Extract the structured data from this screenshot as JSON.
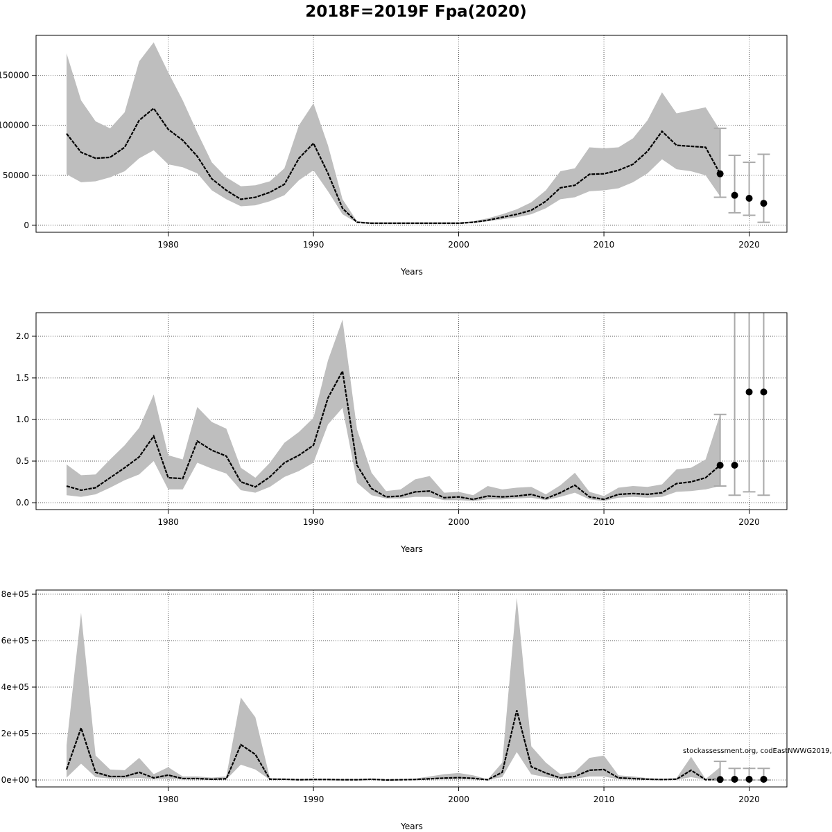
{
  "title": "2018F=2019F Fpa(2020)",
  "annotation": "stockassessment.org, codEastNWWG2019,",
  "chart_data": [
    {
      "type": "line",
      "xlabel": "Years",
      "ylim": [
        -7000,
        190000
      ],
      "xlim": [
        1970.9,
        2022.6
      ],
      "grid": true,
      "x_ticks": [
        "1980",
        "1990",
        "2000",
        "2010",
        "2020"
      ],
      "y_ticks": [
        {
          "v": 0,
          "label": "0"
        },
        {
          "v": 50000,
          "label": "50000"
        },
        {
          "v": 100000,
          "label": "100000"
        },
        {
          "v": 150000,
          "label": "150000"
        }
      ],
      "years_start": 1973,
      "estimate": [
        91700,
        73000,
        67000,
        68000,
        78000,
        105000,
        117000,
        96000,
        85000,
        69000,
        46500,
        35000,
        26000,
        28000,
        33000,
        41000,
        67000,
        82000,
        52000,
        17000,
        3000,
        2000,
        2000,
        2000,
        2000,
        2000,
        2000,
        2000,
        3000,
        5000,
        8000,
        11000,
        15000,
        24000,
        37500,
        40000,
        51000,
        51500,
        55000,
        61000,
        74000,
        94000,
        80000,
        79000,
        78000,
        51500
      ],
      "lower": [
        51000,
        43000,
        44000,
        48000,
        54000,
        67000,
        75000,
        61000,
        58000,
        52000,
        35000,
        26000,
        19000,
        20000,
        24000,
        30000,
        45000,
        55000,
        34000,
        11000,
        2500,
        1500,
        1500,
        1500,
        1500,
        1500,
        1500,
        1500,
        2500,
        4000,
        6000,
        8000,
        11000,
        17000,
        26000,
        28000,
        34000,
        35000,
        37000,
        43000,
        52000,
        66000,
        56000,
        54000,
        50000,
        29000
      ],
      "upper": [
        172000,
        125000,
        104000,
        97000,
        113000,
        164000,
        183000,
        153000,
        125000,
        93000,
        63000,
        48000,
        39000,
        40000,
        44000,
        57000,
        100000,
        122000,
        80000,
        26000,
        4000,
        3000,
        3000,
        3000,
        3000,
        3000,
        3000,
        3000,
        4000,
        7000,
        11000,
        16000,
        23000,
        35000,
        54000,
        57000,
        78000,
        77000,
        78000,
        87000,
        105000,
        133000,
        112000,
        115000,
        118000,
        95000
      ],
      "forecast": [
        {
          "year": 2018,
          "value": 51500,
          "low": 28000,
          "high": 97000
        },
        {
          "year": 2019,
          "value": 30000,
          "low": 12500,
          "high": 70000
        },
        {
          "year": 2020,
          "value": 27000,
          "low": 10000,
          "high": 63000
        },
        {
          "year": 2021,
          "value": 22000,
          "low": 3000,
          "high": 71000
        }
      ]
    },
    {
      "type": "line",
      "xlabel": "Years",
      "ylim": [
        -0.083,
        2.283
      ],
      "xlim": [
        1970.9,
        2022.6
      ],
      "grid": true,
      "x_ticks": [
        "1980",
        "1990",
        "2000",
        "2010",
        "2020"
      ],
      "y_ticks": [
        {
          "v": 0,
          "label": "0.0"
        },
        {
          "v": 0.5,
          "label": "0.5"
        },
        {
          "v": 1.0,
          "label": "1.0"
        },
        {
          "v": 1.5,
          "label": "1.5"
        },
        {
          "v": 2.0,
          "label": "2.0"
        }
      ],
      "years_start": 1973,
      "estimate": [
        0.2,
        0.15,
        0.18,
        0.3,
        0.42,
        0.55,
        0.8,
        0.3,
        0.29,
        0.74,
        0.63,
        0.56,
        0.25,
        0.19,
        0.31,
        0.48,
        0.57,
        0.69,
        1.26,
        1.58,
        0.45,
        0.17,
        0.07,
        0.08,
        0.13,
        0.14,
        0.06,
        0.07,
        0.04,
        0.08,
        0.07,
        0.08,
        0.1,
        0.05,
        0.12,
        0.21,
        0.07,
        0.04,
        0.1,
        0.11,
        0.1,
        0.12,
        0.23,
        0.25,
        0.3,
        0.45
      ],
      "lower": [
        0.09,
        0.07,
        0.1,
        0.18,
        0.27,
        0.34,
        0.5,
        0.16,
        0.16,
        0.48,
        0.41,
        0.35,
        0.15,
        0.12,
        0.19,
        0.31,
        0.38,
        0.48,
        0.94,
        1.14,
        0.24,
        0.09,
        0.05,
        0.05,
        0.07,
        0.07,
        0.03,
        0.03,
        0.02,
        0.04,
        0.04,
        0.05,
        0.06,
        0.03,
        0.07,
        0.12,
        0.04,
        0.02,
        0.06,
        0.07,
        0.06,
        0.07,
        0.13,
        0.14,
        0.16,
        0.2
      ],
      "upper": [
        0.46,
        0.33,
        0.34,
        0.52,
        0.69,
        0.9,
        1.3,
        0.57,
        0.52,
        1.15,
        0.97,
        0.89,
        0.42,
        0.3,
        0.48,
        0.72,
        0.85,
        1.02,
        1.71,
        2.2,
        0.88,
        0.36,
        0.14,
        0.16,
        0.28,
        0.32,
        0.12,
        0.13,
        0.09,
        0.2,
        0.16,
        0.18,
        0.19,
        0.1,
        0.21,
        0.36,
        0.13,
        0.08,
        0.18,
        0.2,
        0.19,
        0.22,
        0.4,
        0.42,
        0.52,
        1.06
      ],
      "forecast": [
        {
          "year": 2018,
          "value": 0.45,
          "low": 0.2,
          "high": 1.06
        },
        {
          "year": 2019,
          "value": 0.45,
          "low": 0.09,
          "high": 3.0
        },
        {
          "year": 2020,
          "value": 1.33,
          "low": 0.13,
          "high": 3.0
        },
        {
          "year": 2021,
          "value": 1.33,
          "low": 0.09,
          "high": 3.0
        }
      ]
    },
    {
      "type": "line",
      "xlabel": "Years",
      "ylim": [
        -30000,
        818000
      ],
      "xlim": [
        1970.9,
        2022.6
      ],
      "grid": true,
      "x_ticks": [
        "1980",
        "1990",
        "2000",
        "2010",
        "2020"
      ],
      "y_ticks": [
        {
          "v": 0,
          "label": "0e+00"
        },
        {
          "v": 200000,
          "label": "2e+05"
        },
        {
          "v": 400000,
          "label": "4e+05"
        },
        {
          "v": 600000,
          "label": "6e+05"
        },
        {
          "v": 800000,
          "label": "8e+05"
        }
      ],
      "years_start": 1973,
      "estimate": [
        45000,
        224000,
        33000,
        15000,
        15000,
        33000,
        9000,
        21000,
        6000,
        6000,
        3000,
        5000,
        152000,
        110000,
        3000,
        3000,
        1000,
        2000,
        2000,
        1000,
        1000,
        3000,
        0,
        1000,
        2000,
        5000,
        8000,
        10000,
        7000,
        1000,
        33000,
        300000,
        57000,
        30000,
        9000,
        15000,
        42000,
        45000,
        9000,
        6000,
        3000,
        2000,
        3000,
        42000,
        1000,
        2000
      ],
      "lower": [
        10000,
        70000,
        12000,
        6000,
        6000,
        9000,
        3000,
        6000,
        2000,
        2000,
        1000,
        2000,
        66000,
        45000,
        1000,
        1000,
        500,
        500,
        500,
        500,
        500,
        1000,
        0,
        500,
        1000,
        2000,
        3000,
        4000,
        3000,
        500,
        12000,
        120000,
        24000,
        12000,
        3000,
        5000,
        15000,
        15000,
        3000,
        2000,
        1000,
        500,
        1000,
        12000,
        500,
        500
      ],
      "upper": [
        150000,
        720000,
        105000,
        45000,
        42000,
        95000,
        25000,
        55000,
        15000,
        15000,
        10000,
        15000,
        355000,
        270000,
        8000,
        6000,
        3000,
        4000,
        4000,
        3000,
        3000,
        6000,
        2000,
        3000,
        6000,
        15000,
        25000,
        30000,
        20000,
        3000,
        75000,
        785000,
        145000,
        75000,
        25000,
        35000,
        95000,
        105000,
        20000,
        15000,
        8000,
        5000,
        8000,
        100000,
        4000,
        55000
      ],
      "forecast": [
        {
          "year": 2018,
          "value": 2000,
          "low": 0,
          "high": 80000
        },
        {
          "year": 2019,
          "value": 3000,
          "low": 0,
          "high": 50000
        },
        {
          "year": 2020,
          "value": 3000,
          "low": 0,
          "high": 50000
        },
        {
          "year": 2021,
          "value": 3000,
          "low": 0,
          "high": 50000
        }
      ]
    }
  ]
}
